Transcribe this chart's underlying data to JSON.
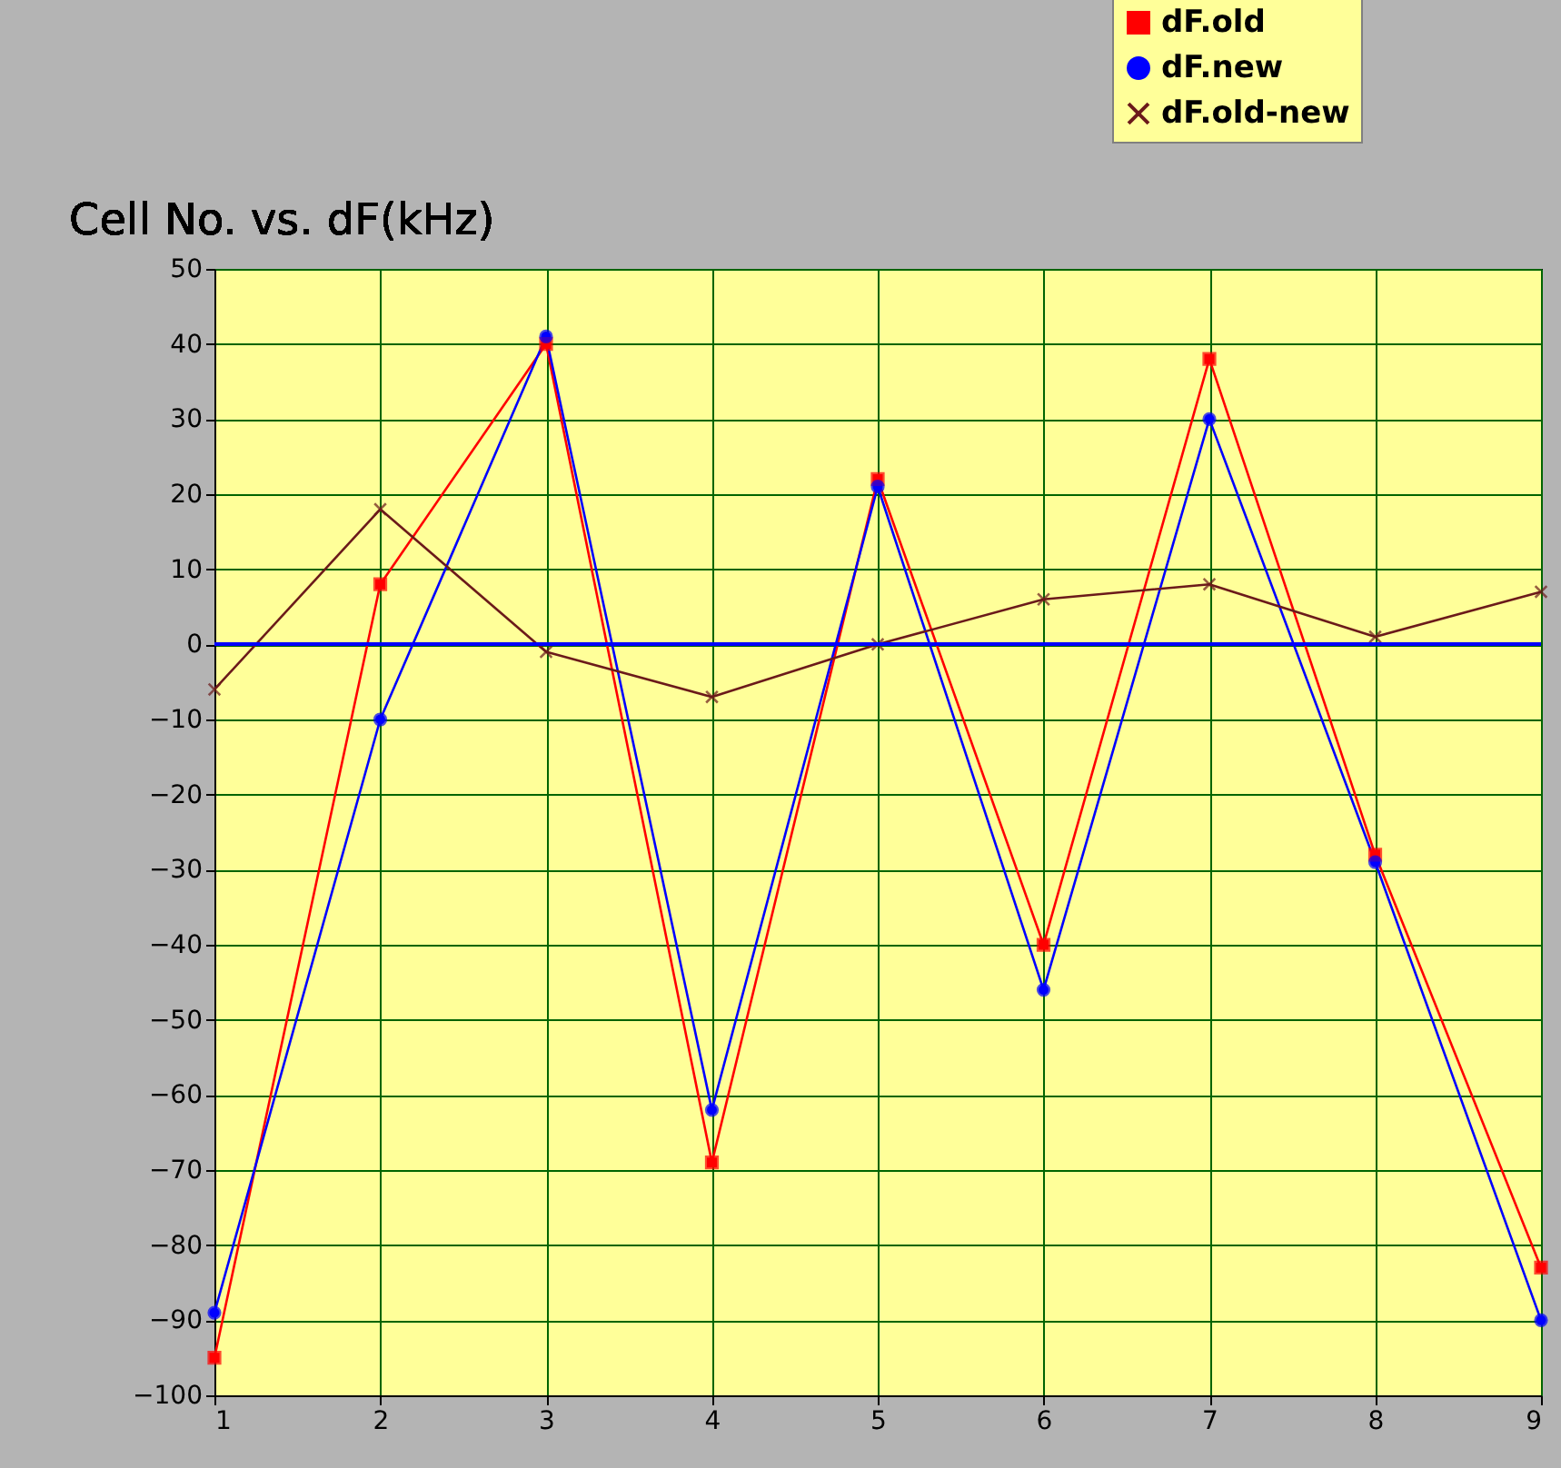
{
  "chart_data": {
    "type": "line",
    "title": "Cell No. vs. dF(kHz)",
    "x": [
      1,
      2,
      3,
      4,
      5,
      6,
      7,
      8,
      9
    ],
    "xlim": [
      1,
      9
    ],
    "xticks": [
      1,
      2,
      3,
      4,
      5,
      6,
      7,
      8,
      9
    ],
    "ylim": [
      -100,
      50
    ],
    "yticks": [
      -100,
      -90,
      -80,
      -70,
      -60,
      -50,
      -40,
      -30,
      -20,
      -10,
      0,
      10,
      20,
      30,
      40,
      50
    ],
    "grid": true,
    "legend": "top right",
    "ref_lines": [
      {
        "axis": "y",
        "value": 0,
        "color": "#0000ff"
      }
    ],
    "series": [
      {
        "name": "dF.old",
        "color": "#ff0000",
        "marker": "square",
        "values": [
          -95,
          8,
          40,
          -69,
          22,
          -40,
          38,
          -28,
          -83
        ]
      },
      {
        "name": "dF.new",
        "color": "#0000ff",
        "marker": "circle",
        "values": [
          -89,
          -10,
          41,
          -62,
          21,
          -46,
          30,
          -29,
          -90
        ]
      },
      {
        "name": "dF.old-new",
        "color": "#6b1a1a",
        "marker": "cross",
        "values": [
          -6,
          18,
          -1,
          -7,
          0,
          6,
          8,
          1,
          7
        ]
      }
    ]
  }
}
